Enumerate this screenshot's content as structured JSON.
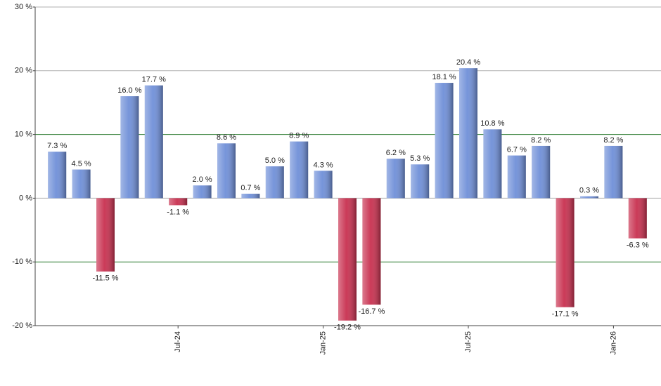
{
  "chart_data": {
    "type": "bar",
    "categories": [
      null,
      null,
      null,
      null,
      null,
      "Jul-24",
      null,
      null,
      null,
      null,
      null,
      "Jan-25",
      null,
      null,
      null,
      null,
      null,
      "Jul-25",
      null,
      null,
      null,
      null,
      null,
      "Jan-26",
      null
    ],
    "values": [
      7.3,
      4.5,
      -11.5,
      16.0,
      17.7,
      -1.1,
      2.0,
      8.6,
      0.7,
      5.0,
      8.9,
      4.3,
      -19.2,
      -16.7,
      6.2,
      5.3,
      18.1,
      20.4,
      10.8,
      6.7,
      8.2,
      -17.1,
      0.3,
      8.2,
      -6.3
    ],
    "value_labels": [
      "7.3 %",
      "4.5 %",
      "-11.5 %",
      "16.0 %",
      "17.7 %",
      "-1.1 %",
      "2.0 %",
      "8.6 %",
      "0.7 %",
      "5.0 %",
      "8.9 %",
      "4.3 %",
      "-19.2 %",
      "-16.7 %",
      "6.2 %",
      "5.3 %",
      "18.1 %",
      "20.4 %",
      "10.8 %",
      "6.7 %",
      "8.2 %",
      "-17.1 %",
      "0.3 %",
      "8.2 %",
      "-6.3 %"
    ],
    "positive_color": "#6f8fd8",
    "negative_color": "#c8304f",
    "ylim": [
      -20,
      30
    ],
    "yticks": [
      {
        "value": -20,
        "label": "-20 %"
      },
      {
        "value": -10,
        "label": "-10 %"
      },
      {
        "value": 0,
        "label": "0 %"
      },
      {
        "value": 10,
        "label": "10 %"
      },
      {
        "value": 20,
        "label": "20 %"
      },
      {
        "value": 30,
        "label": "30 %"
      }
    ],
    "grid": true,
    "grid_colors": [
      "#b0b0b0",
      "#2e7d32",
      "#b0b0b0",
      "#2e7d32",
      "#b0b0b0",
      "#b0b0b0"
    ]
  }
}
